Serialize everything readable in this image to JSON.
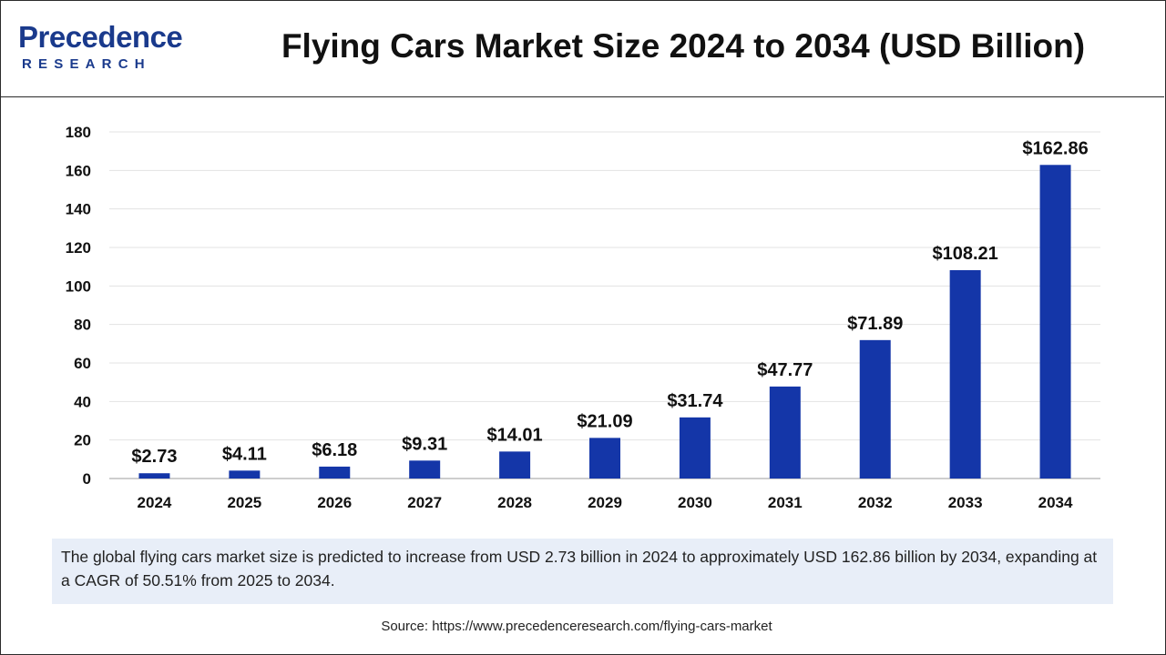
{
  "header": {
    "logo_main": "Precedence",
    "logo_sub": "RESEARCH",
    "title": "Flying Cars Market Size 2024 to 2034 (USD Billion)"
  },
  "chart_data": {
    "type": "bar",
    "title": "Flying Cars Market Size 2024 to 2034 (USD Billion)",
    "xlabel": "",
    "ylabel": "",
    "categories": [
      "2024",
      "2025",
      "2026",
      "2027",
      "2028",
      "2029",
      "2030",
      "2031",
      "2032",
      "2033",
      "2034"
    ],
    "values": [
      2.73,
      4.11,
      6.18,
      9.31,
      14.01,
      21.09,
      31.74,
      47.77,
      71.89,
      108.21,
      162.86
    ],
    "data_labels": [
      "$2.73",
      "$4.11",
      "$6.18",
      "$9.31",
      "$14.01",
      "$21.09",
      "$31.74",
      "$47.77",
      "$71.89",
      "$108.21",
      "$162.86"
    ],
    "ylim": [
      0,
      180
    ],
    "yticks": [
      "0",
      "20",
      "40",
      "60",
      "80",
      "100",
      "120",
      "140",
      "160",
      "180"
    ],
    "grid": true,
    "bar_color": "#1436a8"
  },
  "description": "The global flying cars market size is predicted to increase from USD 2.73 billion in 2024 to approximately USD 162.86 billion by 2034, expanding at a CAGR of 50.51% from 2025 to 2034.",
  "source": "Source: https://www.precedenceresearch.com/flying-cars-market"
}
